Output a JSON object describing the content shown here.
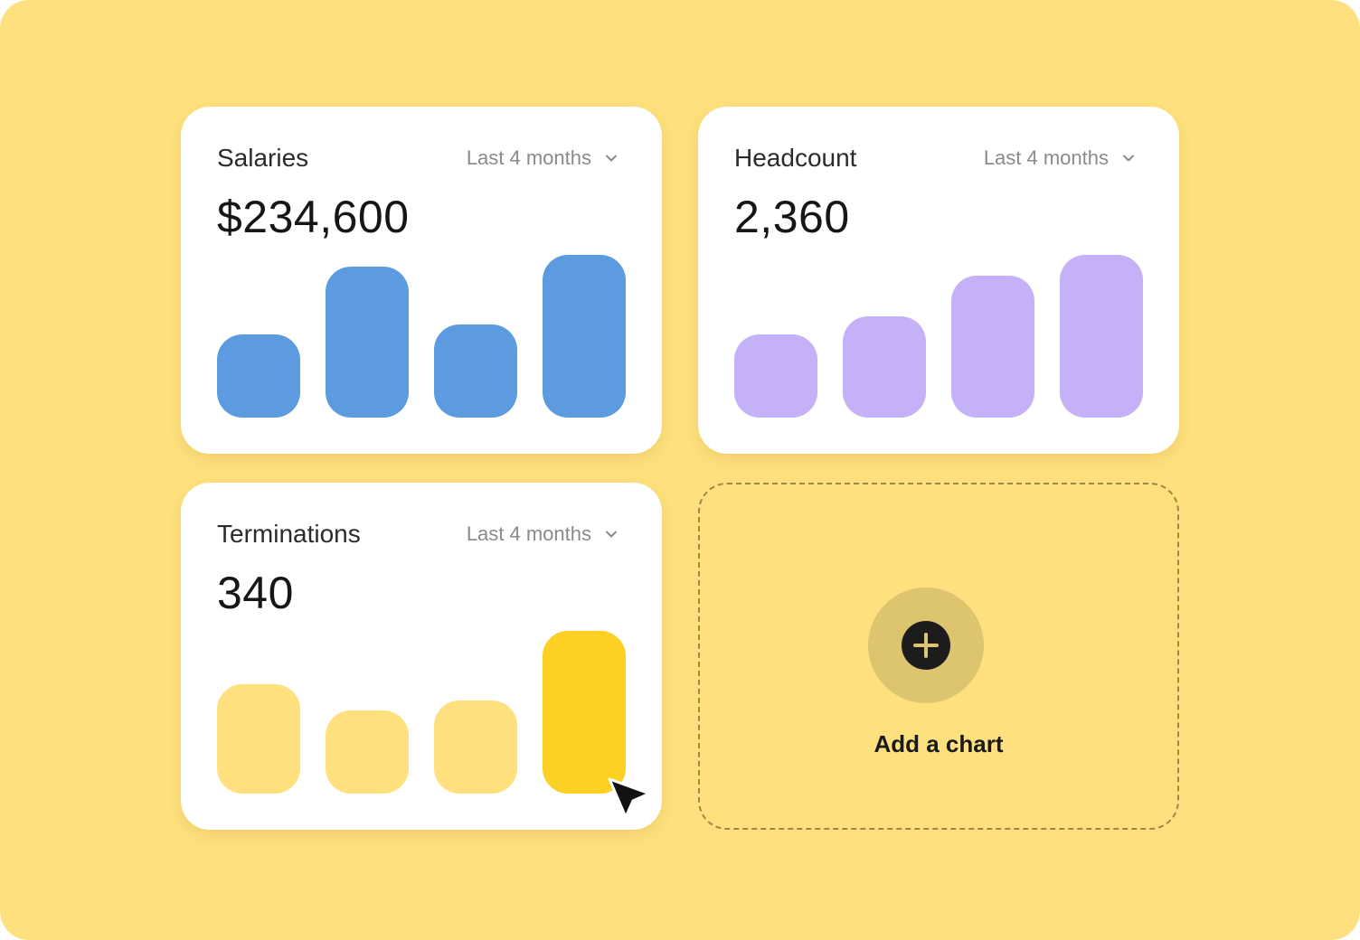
{
  "colors": {
    "background": "#FEE17E",
    "salaries_bar": "#5C9BE0",
    "headcount_bar": "#C5B1F7",
    "terminations_bar": "#FEE17E",
    "terminations_bar_highlight": "#FDD024",
    "add_circle": "#DDC46F"
  },
  "cards": [
    {
      "title": "Salaries",
      "range_label": "Last 4 months",
      "range_icon": "chevron-down-icon",
      "value": "$234,600"
    },
    {
      "title": "Headcount",
      "range_label": "Last 4 months",
      "range_icon": "chevron-down-icon",
      "value": "2,360"
    },
    {
      "title": "Terminations",
      "range_label": "Last 4 months",
      "range_icon": "chevron-down-icon",
      "value": "340"
    }
  ],
  "add_chart": {
    "label": "Add a chart",
    "icon": "plus-icon"
  },
  "cursor_icon": "mouse-pointer-icon",
  "chart_data": [
    {
      "type": "bar",
      "title": "Salaries",
      "categories": [
        "",
        "",
        "",
        ""
      ],
      "values": [
        0.51,
        0.93,
        0.57,
        1.0
      ],
      "color": "#5C9BE0"
    },
    {
      "type": "bar",
      "title": "Headcount",
      "categories": [
        "",
        "",
        "",
        ""
      ],
      "values": [
        0.51,
        0.62,
        0.87,
        1.0
      ],
      "color": "#C5B1F7"
    },
    {
      "type": "bar",
      "title": "Terminations",
      "categories": [
        "",
        "",
        "",
        ""
      ],
      "values": [
        0.67,
        0.51,
        0.57,
        1.0
      ],
      "color": "#FEE17E",
      "highlight_index": 3,
      "highlight_color": "#FDD024"
    }
  ]
}
